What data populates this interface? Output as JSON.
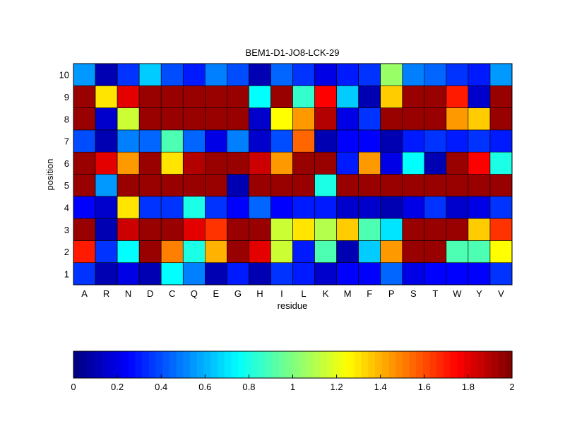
{
  "chart_data": {
    "type": "heatmap",
    "title": "BEM1-D1-JO8-LCK-29",
    "xlabel": "residue",
    "ylabel": "position",
    "columns": [
      "A",
      "R",
      "N",
      "D",
      "C",
      "Q",
      "E",
      "G",
      "H",
      "I",
      "L",
      "K",
      "M",
      "F",
      "P",
      "S",
      "T",
      "W",
      "Y",
      "V"
    ],
    "rows": [
      "1",
      "2",
      "3",
      "4",
      "5",
      "6",
      "7",
      "8",
      "9",
      "10"
    ],
    "values": [
      [
        0.35,
        0.1,
        0.2,
        0.1,
        0.75,
        0.5,
        0.1,
        0.3,
        0.1,
        0.35,
        0.3,
        0.15,
        0.25,
        0.25,
        0.45,
        0.2,
        0.25,
        0.25,
        0.25,
        0.35
      ],
      [
        1.7,
        0.35,
        0.75,
        1.95,
        1.5,
        0.8,
        1.4,
        1.95,
        1.8,
        1.15,
        0.3,
        0.9,
        0.1,
        0.65,
        1.45,
        1.95,
        1.95,
        0.9,
        0.9,
        1.25
      ],
      [
        1.95,
        0.1,
        1.85,
        1.95,
        1.95,
        1.8,
        1.65,
        1.95,
        1.95,
        1.15,
        1.3,
        1.1,
        1.35,
        0.9,
        0.7,
        1.95,
        1.95,
        1.95,
        1.35,
        1.65
      ],
      [
        0.25,
        0.15,
        1.3,
        0.35,
        0.35,
        0.8,
        0.35,
        0.25,
        0.45,
        0.25,
        0.3,
        0.3,
        0.15,
        0.15,
        0.1,
        0.2,
        0.35,
        0.15,
        0.2,
        0.35
      ],
      [
        1.95,
        0.55,
        1.95,
        1.95,
        1.95,
        1.95,
        1.95,
        0.1,
        1.95,
        1.95,
        1.95,
        0.8,
        1.95,
        1.95,
        1.95,
        1.95,
        1.95,
        1.95,
        1.95,
        1.95
      ],
      [
        1.95,
        1.8,
        1.45,
        1.95,
        1.3,
        1.9,
        1.95,
        1.95,
        1.85,
        1.45,
        1.95,
        1.95,
        0.3,
        1.45,
        0.2,
        0.75,
        0.1,
        1.95,
        1.75,
        0.8
      ],
      [
        0.4,
        0.1,
        0.5,
        0.45,
        0.9,
        0.45,
        0.2,
        0.5,
        0.15,
        0.4,
        1.55,
        0.1,
        0.25,
        0.25,
        0.1,
        0.3,
        0.35,
        0.3,
        0.35,
        0.3
      ],
      [
        1.95,
        0.15,
        1.15,
        1.95,
        1.95,
        1.95,
        1.95,
        1.95,
        0.15,
        1.25,
        1.45,
        1.9,
        0.2,
        0.35,
        1.95,
        1.95,
        1.95,
        1.45,
        1.35,
        1.95
      ],
      [
        1.95,
        1.3,
        1.8,
        1.95,
        1.95,
        1.95,
        1.95,
        1.95,
        0.75,
        1.95,
        0.85,
        1.75,
        0.65,
        0.1,
        1.35,
        1.95,
        1.95,
        1.7,
        0.15,
        1.95
      ],
      [
        0.55,
        0.1,
        0.35,
        0.65,
        0.4,
        0.3,
        0.5,
        0.4,
        0.1,
        0.45,
        0.35,
        0.2,
        0.3,
        0.35,
        1.05,
        0.5,
        0.45,
        0.35,
        0.3,
        0.55
      ]
    ],
    "colorbar": {
      "min": 0,
      "max": 2,
      "ticks": [
        "0",
        "0.2",
        "0.4",
        "0.6",
        "0.8",
        "1",
        "1.2",
        "1.4",
        "1.6",
        "1.8",
        "2"
      ],
      "colormap": "jet",
      "orientation": "horizontal"
    },
    "grid": true
  }
}
